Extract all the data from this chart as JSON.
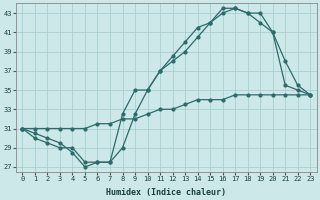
{
  "xlabel": "Humidex (Indice chaleur)",
  "xlim": [
    -0.5,
    23.5
  ],
  "ylim": [
    26.5,
    44
  ],
  "yticks": [
    27,
    29,
    31,
    33,
    35,
    37,
    39,
    41,
    43
  ],
  "xticks": [
    0,
    1,
    2,
    3,
    4,
    5,
    6,
    7,
    8,
    9,
    10,
    11,
    12,
    13,
    14,
    15,
    16,
    17,
    18,
    19,
    20,
    21,
    22,
    23
  ],
  "background_color": "#cce8e8",
  "grid_color": "#aacece",
  "line_color": "#2d6b6b",
  "line1_x": [
    0,
    1,
    2,
    3,
    4,
    5,
    6,
    7,
    8,
    9,
    10,
    11,
    12,
    13,
    14,
    15,
    16,
    17,
    18,
    19,
    20,
    21,
    22,
    23
  ],
  "line1_y": [
    31,
    30.5,
    30,
    29.5,
    28.5,
    27,
    27.5,
    27.5,
    29,
    32.5,
    35,
    37,
    38.5,
    40,
    41.5,
    42,
    43.5,
    43.5,
    43,
    43,
    41,
    35.5,
    35,
    34.5
  ],
  "line2_x": [
    0,
    1,
    2,
    3,
    4,
    5,
    6,
    7,
    8,
    9,
    10,
    11,
    12,
    13,
    14,
    15,
    16,
    17,
    18,
    19,
    20,
    21,
    22,
    23
  ],
  "line2_y": [
    31,
    30,
    29.5,
    29,
    29,
    27.5,
    27.5,
    27.5,
    32.5,
    35,
    35,
    37,
    38,
    39,
    40.5,
    42,
    43,
    43.5,
    43,
    42,
    41,
    38,
    35.5,
    34.5
  ],
  "line3_x": [
    0,
    1,
    2,
    3,
    4,
    5,
    6,
    7,
    8,
    9,
    10,
    11,
    12,
    13,
    14,
    15,
    16,
    17,
    18,
    19,
    20,
    21,
    22,
    23
  ],
  "line3_y": [
    31,
    31,
    31,
    31,
    31,
    31,
    31.5,
    31.5,
    32,
    32,
    32.5,
    33,
    33,
    33.5,
    34,
    34,
    34,
    34.5,
    34.5,
    34.5,
    34.5,
    34.5,
    34.5,
    34.5
  ],
  "markersize": 2.0,
  "linewidth": 0.9
}
